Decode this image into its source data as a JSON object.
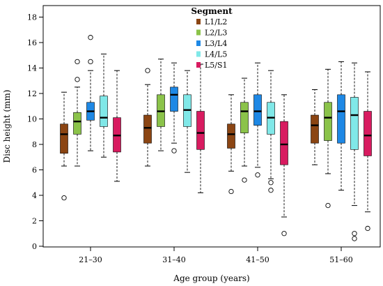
{
  "chart_data": {
    "type": "box",
    "xlabel": "Age group  (years)",
    "ylabel": "Disc height  (mm)",
    "ylim": [
      0,
      19
    ],
    "yticks": [
      0,
      2,
      4,
      6,
      8,
      10,
      12,
      14,
      16,
      18
    ],
    "categories": [
      "21–30",
      "31–40",
      "41–50",
      "51–60"
    ],
    "legend": {
      "title": "Segment",
      "placement": "top-center"
    },
    "series": [
      {
        "name": "L1/L2",
        "color": "#8b4513",
        "boxes": [
          {
            "whisker_low": 6.3,
            "q1": 7.3,
            "median": 8.8,
            "q3": 9.6,
            "whisker_high": 12.1,
            "outliers": [
              3.8
            ]
          },
          {
            "whisker_low": 6.3,
            "q1": 8.1,
            "median": 9.3,
            "q3": 10.3,
            "whisker_high": 12.7,
            "outliers": [
              13.8
            ]
          },
          {
            "whisker_low": 5.9,
            "q1": 7.7,
            "median": 8.8,
            "q3": 9.6,
            "whisker_high": 11.9,
            "outliers": [
              4.3
            ]
          },
          {
            "whisker_low": 6.4,
            "q1": 8.1,
            "median": 9.5,
            "q3": 10.3,
            "whisker_high": 12.3,
            "outliers": []
          }
        ]
      },
      {
        "name": "L2/L3",
        "color": "#8bc34a",
        "boxes": [
          {
            "whisker_low": 6.3,
            "q1": 8.8,
            "median": 9.8,
            "q3": 10.5,
            "whisker_high": 12.5,
            "outliers": [
              13.1,
              14.5
            ]
          },
          {
            "whisker_low": 7.5,
            "q1": 9.4,
            "median": 10.6,
            "q3": 11.9,
            "whisker_high": 14.7,
            "outliers": []
          },
          {
            "whisker_low": 6.3,
            "q1": 8.9,
            "median": 10.6,
            "q3": 11.3,
            "whisker_high": 13.2,
            "outliers": [
              5.2
            ]
          },
          {
            "whisker_low": 5.7,
            "q1": 8.3,
            "median": 10.1,
            "q3": 11.3,
            "whisker_high": 13.9,
            "outliers": [
              3.2
            ]
          }
        ]
      },
      {
        "name": "L3/L4",
        "color": "#1e88e5",
        "boxes": [
          {
            "whisker_low": 7.5,
            "q1": 9.9,
            "median": 10.6,
            "q3": 11.3,
            "whisker_high": 13.8,
            "outliers": [
              14.5,
              16.4
            ]
          },
          {
            "whisker_low": 8.1,
            "q1": 10.6,
            "median": 11.9,
            "q3": 12.5,
            "whisker_high": 14.4,
            "outliers": [
              7.5
            ]
          },
          {
            "whisker_low": 6.2,
            "q1": 9.5,
            "median": 10.6,
            "q3": 11.9,
            "whisker_high": 14.4,
            "outliers": [
              5.6
            ]
          },
          {
            "whisker_low": 4.4,
            "q1": 8.1,
            "median": 10.6,
            "q3": 11.9,
            "whisker_high": 14.5,
            "outliers": []
          }
        ]
      },
      {
        "name": "L4/L5",
        "color": "#80e8e8",
        "boxes": [
          {
            "whisker_low": 7.0,
            "q1": 9.4,
            "median": 10.1,
            "q3": 11.8,
            "whisker_high": 15.1,
            "outliers": []
          },
          {
            "whisker_low": 5.8,
            "q1": 9.4,
            "median": 10.7,
            "q3": 11.9,
            "whisker_high": 13.8,
            "outliers": []
          },
          {
            "whisker_low": 5.3,
            "q1": 8.8,
            "median": 10.1,
            "q3": 11.3,
            "whisker_high": 13.8,
            "outliers": [
              5.0,
              4.4
            ]
          },
          {
            "whisker_low": 3.2,
            "q1": 7.6,
            "median": 10.3,
            "q3": 11.7,
            "whisker_high": 14.4,
            "outliers": [
              1.0,
              0.6
            ]
          }
        ]
      },
      {
        "name": "L5/S1",
        "color": "#d81b60",
        "boxes": [
          {
            "whisker_low": 5.1,
            "q1": 7.4,
            "median": 8.7,
            "q3": 10.1,
            "whisker_high": 13.8,
            "outliers": []
          },
          {
            "whisker_low": 4.2,
            "q1": 7.6,
            "median": 8.9,
            "q3": 10.6,
            "whisker_high": 14.3,
            "outliers": []
          },
          {
            "whisker_low": 2.3,
            "q1": 6.4,
            "median": 8.0,
            "q3": 9.8,
            "whisker_high": 11.9,
            "outliers": [
              1.0
            ]
          },
          {
            "whisker_low": 2.7,
            "q1": 7.1,
            "median": 8.7,
            "q3": 10.6,
            "whisker_high": 13.7,
            "outliers": [
              1.4
            ]
          }
        ]
      }
    ]
  }
}
